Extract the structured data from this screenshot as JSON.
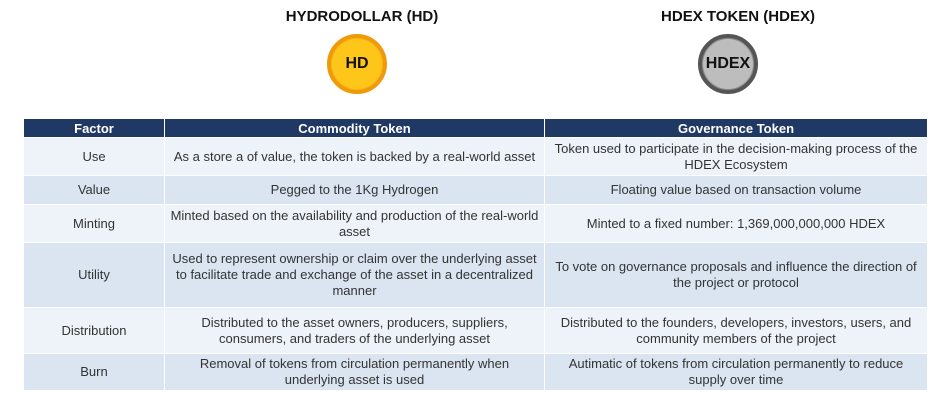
{
  "tokens": {
    "hd": {
      "title": "HYDRODOLLAR (HD)",
      "symbol": "HD",
      "color": "#ffc61a",
      "border": "#f09a09"
    },
    "hdex": {
      "title": "HDEX TOKEN (HDEX)",
      "symbol": "HDEX",
      "color": "#bdbdbd",
      "border": "#555555"
    }
  },
  "table": {
    "headers": [
      "Factor",
      "Commodity Token",
      "Governance Token"
    ],
    "header_color": "#1f3864",
    "rows": [
      {
        "factor": "Use",
        "commodity": "As a store a of value, the token is backed by a real-world asset",
        "governance": "Token used to participate in the decision-making process of the HDEX Ecosystem"
      },
      {
        "factor": "Value",
        "commodity": "Pegged to the 1Kg Hydrogen",
        "governance": "Floating value based on transaction volume"
      },
      {
        "factor": "Minting",
        "commodity": "Minted based on the availability and production of the real-world asset",
        "governance": "Minted to a fixed number: 1,369,000,000,000 HDEX"
      },
      {
        "factor": "Utility",
        "commodity": "Used to represent ownership or claim over the underlying asset to facilitate trade and exchange of the asset in a decentralized manner",
        "governance": "To vote on governance proposals and influence the direction of the project or protocol"
      },
      {
        "factor": "Distribution",
        "commodity": "Distributed to the asset owners, producers, suppliers, consumers, and traders of the underlying asset",
        "governance": "Distributed to the founders, developers, investors, users, and community members of the project"
      },
      {
        "factor": "Burn",
        "commodity": "Removal of tokens from circulation permanently when underlying asset is used",
        "governance": "Autimatic of tokens from circulation permanently to reduce supply over time"
      }
    ]
  }
}
